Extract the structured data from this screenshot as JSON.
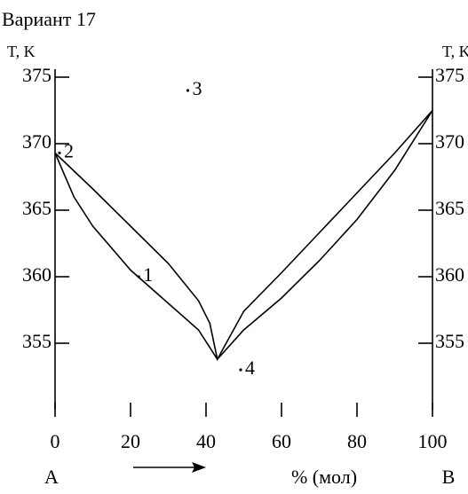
{
  "chart_data": {
    "type": "line",
    "title": "Вариант 17",
    "y_label": "T, K",
    "y2_label": "T, K",
    "x_start_label": "A",
    "x_end_label": "B",
    "x_label": "% (мол)",
    "xlim": [
      0,
      100
    ],
    "xticks": [
      0,
      20,
      40,
      60,
      80,
      100
    ],
    "ylim": [
      350,
      376
    ],
    "yticks": [
      355,
      360,
      365,
      370,
      375
    ],
    "series": [
      {
        "color": "#000000",
        "x": [
          0,
          10,
          20,
          30,
          38,
          41,
          43,
          50,
          60,
          70,
          80,
          90,
          100
        ],
        "values": [
          369.3,
          366.6,
          363.8,
          361,
          358.2,
          356.5,
          353.8,
          357.4,
          360.3,
          363.3,
          366.3,
          369.3,
          372.5
        ]
      },
      {
        "color": "#000000",
        "x": [
          0,
          5,
          10,
          20,
          30,
          38,
          43,
          50,
          60,
          70,
          80,
          90,
          100
        ],
        "values": [
          369.3,
          366,
          363.8,
          360.5,
          358,
          356,
          353.8,
          356,
          358.4,
          361.2,
          364.3,
          368,
          372.5
        ]
      }
    ],
    "points": [
      {
        "label": "1",
        "x": 21,
        "y": 360
      },
      {
        "label": "2",
        "x": 0,
        "y": 369.3
      },
      {
        "label": "3",
        "x": 34,
        "y": 374
      },
      {
        "label": "4",
        "x": 48,
        "y": 353
      }
    ]
  }
}
